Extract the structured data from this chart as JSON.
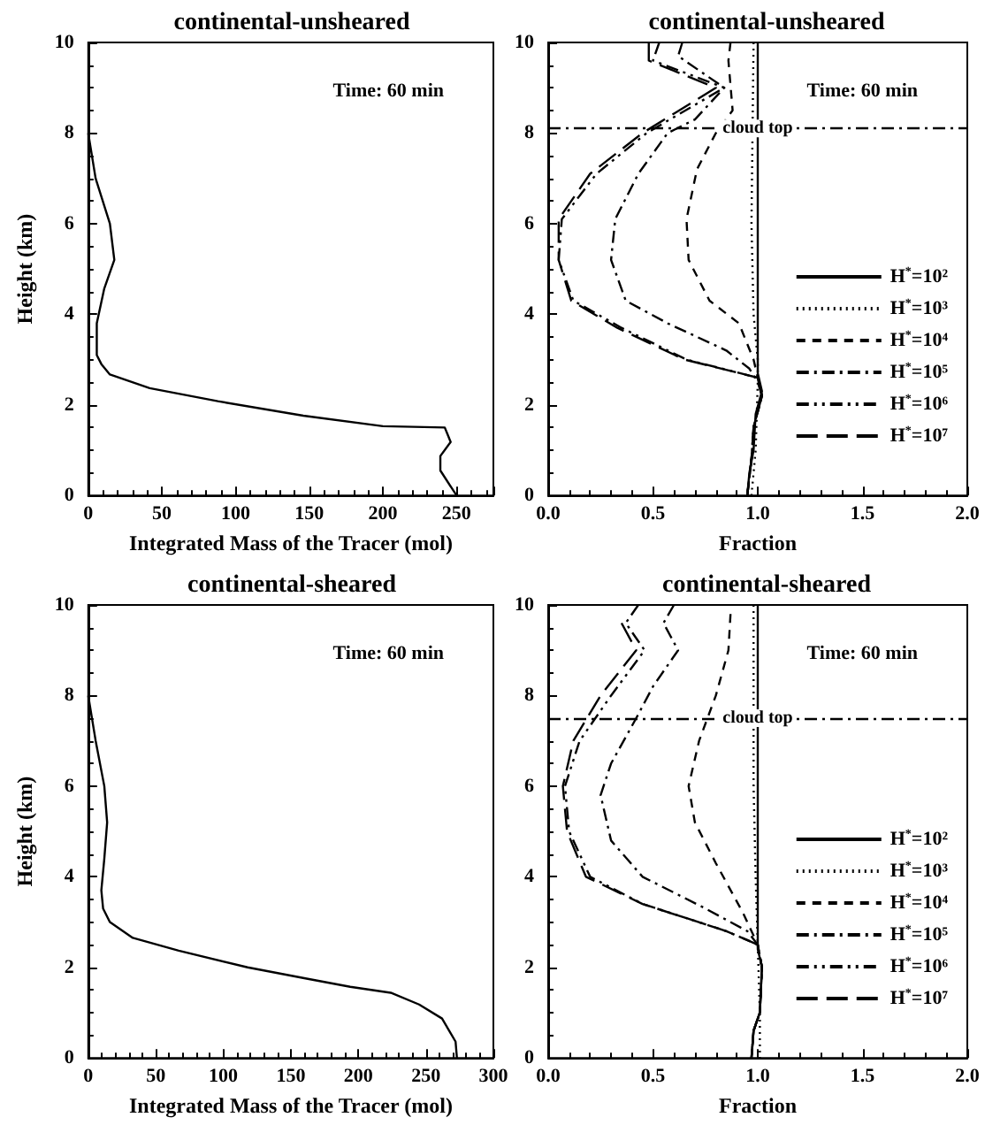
{
  "chart_data": [
    {
      "type": "line",
      "title": "continental-unsheared",
      "xlabel": "Integrated Mass of the Tracer (mol)",
      "ylabel": "Height (km)",
      "xlim": [
        0,
        275
      ],
      "xticks": [
        0,
        50,
        100,
        150,
        200,
        250
      ],
      "ylim": [
        0,
        10
      ],
      "yticks": [
        0,
        2,
        4,
        6,
        8,
        10
      ],
      "marker": "none",
      "annotations": [
        "Time: 60 min"
      ],
      "series": [
        {
          "color": "#000000",
          "line_style": "solid",
          "x": [
            0,
            5,
            14.7,
            17.7,
            10.8,
            5.8,
            5.8,
            8.9,
            14.7,
            41.7,
            88,
            146,
            200,
            242,
            246,
            239,
            239,
            250
          ],
          "values": [
            8,
            7,
            6,
            5.2,
            4.56,
            3.8,
            3.1,
            2.9,
            2.67,
            2.37,
            2.08,
            1.76,
            1.53,
            1.5,
            1.18,
            0.87,
            0.55,
            0
          ]
        }
      ]
    },
    {
      "type": "line",
      "title": "continental-unsheared",
      "xlabel": "Fraction",
      "xlim": [
        0,
        2
      ],
      "xticks": [
        {
          "value": 0,
          "label": "0.0"
        },
        {
          "value": 0.5,
          "label": "0.5"
        },
        {
          "value": 1,
          "label": "1.0"
        },
        {
          "value": 1.5,
          "label": "1.5"
        },
        {
          "value": 2,
          "label": "2.0"
        }
      ],
      "ylim": [
        0,
        10
      ],
      "yticks": [
        0,
        2,
        4,
        6,
        8,
        10
      ],
      "marker": "none",
      "legend": "right",
      "annotations": [
        "Time: 60 min"
      ],
      "ref_lines": [
        {
          "axis": "y",
          "value": 8.1,
          "label": "cloud top",
          "line_style": "dashdot"
        }
      ],
      "series": [
        {
          "name": "H$^{*}$=10²",
          "color": "#000000",
          "line_style": "solid",
          "x": [
            1,
            1,
            1.02,
            0.99,
            0.98,
            0.96,
            0.95
          ],
          "values": [
            10,
            2.7,
            2.3,
            1.8,
            1,
            0.5,
            0
          ]
        },
        {
          "name": "H$^{*}$=10³",
          "color": "#000000",
          "line_style": "dotted",
          "x": [
            0.98,
            0.97,
            0.98,
            1,
            1,
            0.99,
            0.97
          ],
          "values": [
            10,
            6,
            4,
            3,
            2.5,
            1,
            0
          ]
        },
        {
          "name": "H$^{*}$=10⁴",
          "color": "#000000",
          "line_style": "dashed",
          "x": [
            0.87,
            0.86,
            0.88,
            0.8,
            0.71,
            0.66,
            0.67,
            0.77,
            0.91,
            0.98,
            1,
            1.02,
            0.98,
            0.97,
            0.95
          ],
          "values": [
            10,
            9.6,
            8.5,
            8,
            7.2,
            6.1,
            5.2,
            4.3,
            3.8,
            3,
            2.6,
            2.2,
            1.5,
            0.8,
            0
          ]
        },
        {
          "name": "H$^{*}$=10⁵",
          "color": "#000000",
          "line_style": "dashdot",
          "x": [
            0.64,
            0.62,
            0.84,
            0.7,
            0.57,
            0.43,
            0.32,
            0.3,
            0.37,
            0.57,
            0.85,
            0.96,
            1,
            1.02,
            0.98,
            0.97,
            0.95
          ],
          "values": [
            10,
            9.7,
            9,
            8.3,
            8,
            7.1,
            6.1,
            5.2,
            4.3,
            3.8,
            3.2,
            2.8,
            2.5,
            2.2,
            1.5,
            0.8,
            0
          ]
        },
        {
          "name": "H$^{*}$=10⁶",
          "color": "#000000",
          "line_style": "dashdotdot",
          "x": [
            0.53,
            0.5,
            0.84,
            0.47,
            0.23,
            0.065,
            0.05,
            0.12,
            0.35,
            0.66,
            1,
            1.02,
            0.98,
            0.97,
            0.95
          ],
          "values": [
            10,
            9.6,
            9,
            8,
            7.1,
            6.1,
            5.2,
            4.3,
            3.7,
            3,
            2.6,
            2.2,
            1.5,
            0.8,
            0
          ]
        },
        {
          "name": "H$^{*}$=10⁷",
          "color": "#000000",
          "line_style": "longdash",
          "x": [
            0.48,
            0.48,
            0.8,
            0.45,
            0.2,
            0.05,
            0.05,
            0.11,
            0.33,
            0.65,
            1,
            1.02,
            0.98,
            0.97,
            0.95
          ],
          "values": [
            10,
            9.6,
            9,
            8,
            7.1,
            6.1,
            5.2,
            4.3,
            3.7,
            3,
            2.6,
            2.2,
            1.5,
            0.8,
            0
          ]
        }
      ]
    },
    {
      "type": "line",
      "title": "continental-sheared",
      "xlabel": "Integrated Mass of the Tracer (mol)",
      "ylabel": "Height (km)",
      "xlim": [
        0,
        300
      ],
      "xticks": [
        0,
        50,
        100,
        150,
        200,
        250,
        300
      ],
      "ylim": [
        0,
        10
      ],
      "yticks": [
        0,
        2,
        4,
        6,
        8,
        10
      ],
      "marker": "none",
      "annotations": [
        "Time: 60 min"
      ],
      "series": [
        {
          "color": "#000000",
          "line_style": "solid",
          "x": [
            0,
            5.5,
            11.9,
            14,
            11.9,
            9.7,
            11,
            16,
            33,
            67,
            118,
            160,
            194,
            224,
            245,
            262,
            272,
            273
          ],
          "values": [
            8,
            7,
            6,
            5.2,
            4.4,
            3.7,
            3.3,
            3,
            2.65,
            2.37,
            2,
            1.76,
            1.57,
            1.44,
            1.18,
            0.87,
            0.36,
            0
          ]
        }
      ]
    },
    {
      "type": "line",
      "title": "continental-sheared",
      "xlabel": "Fraction",
      "xlim": [
        0,
        2
      ],
      "xticks": [
        {
          "value": 0,
          "label": "0.0"
        },
        {
          "value": 0.5,
          "label": "0.5"
        },
        {
          "value": 1,
          "label": "1.0"
        },
        {
          "value": 1.5,
          "label": "1.5"
        },
        {
          "value": 2,
          "label": "2.0"
        }
      ],
      "ylim": [
        0,
        10
      ],
      "yticks": [
        0,
        2,
        4,
        6,
        8,
        10
      ],
      "marker": "none",
      "legend": "right",
      "annotations": [
        "Time: 60 min"
      ],
      "ref_lines": [
        {
          "axis": "y",
          "value": 7.5,
          "label": "cloud top",
          "line_style": "dashdot"
        }
      ],
      "series": [
        {
          "name": "H$^{*}$=10²",
          "color": "#000000",
          "line_style": "solid",
          "x": [
            1,
            1,
            1.02,
            1.01,
            0.98,
            0.97
          ],
          "values": [
            10,
            2.4,
            2,
            1,
            0.6,
            0
          ]
        },
        {
          "name": "H$^{*}$=10³",
          "color": "#000000",
          "line_style": "dotted",
          "x": [
            0.98,
            0.98,
            0.99,
            1,
            1.01,
            1.01
          ],
          "values": [
            10,
            6,
            4,
            2.5,
            1,
            0
          ]
        },
        {
          "name": "H$^{*}$=10⁴",
          "color": "#000000",
          "line_style": "dashed",
          "x": [
            0.87,
            0.86,
            0.8,
            0.72,
            0.67,
            0.7,
            0.8,
            0.93,
            1,
            1.02,
            1.01,
            0.98,
            0.97
          ],
          "values": [
            9.8,
            9,
            8,
            7,
            6,
            5.2,
            4.3,
            3.2,
            2.5,
            2,
            1,
            0.6,
            0
          ]
        },
        {
          "name": "H$^{*}$=10⁵",
          "color": "#000000",
          "line_style": "dashdot",
          "x": [
            0.6,
            0.55,
            0.62,
            0.5,
            0.42,
            0.3,
            0.25,
            0.3,
            0.45,
            0.75,
            0.95,
            1,
            1.02,
            1.01,
            0.98,
            0.97
          ],
          "values": [
            10,
            9.6,
            9,
            8.2,
            7.5,
            6.5,
            5.8,
            4.8,
            4,
            3.3,
            2.8,
            2.5,
            2,
            1,
            0.6,
            0
          ]
        },
        {
          "name": "H$^{*}$=10⁶",
          "color": "#000000",
          "line_style": "dashdotdot",
          "x": [
            0.43,
            0.37,
            0.46,
            0.3,
            0.15,
            0.08,
            0.1,
            0.2,
            0.45,
            0.85,
            1,
            1.02,
            1.01,
            0.98,
            0.97
          ],
          "values": [
            10,
            9.6,
            9,
            8,
            7,
            6,
            5,
            4,
            3.4,
            2.8,
            2.5,
            2,
            1,
            0.6,
            0
          ]
        },
        {
          "name": "H$^{*}$=10⁷",
          "color": "#000000",
          "line_style": "longdash",
          "x": [
            0.35,
            0.42,
            0.25,
            0.12,
            0.07,
            0.09,
            0.18,
            0.45,
            0.85,
            1,
            1.02,
            1.01,
            0.98,
            0.97
          ],
          "values": [
            9.6,
            9,
            8,
            7,
            6,
            5,
            4,
            3.4,
            2.8,
            2.5,
            2,
            1,
            0.6,
            0
          ]
        }
      ]
    }
  ]
}
